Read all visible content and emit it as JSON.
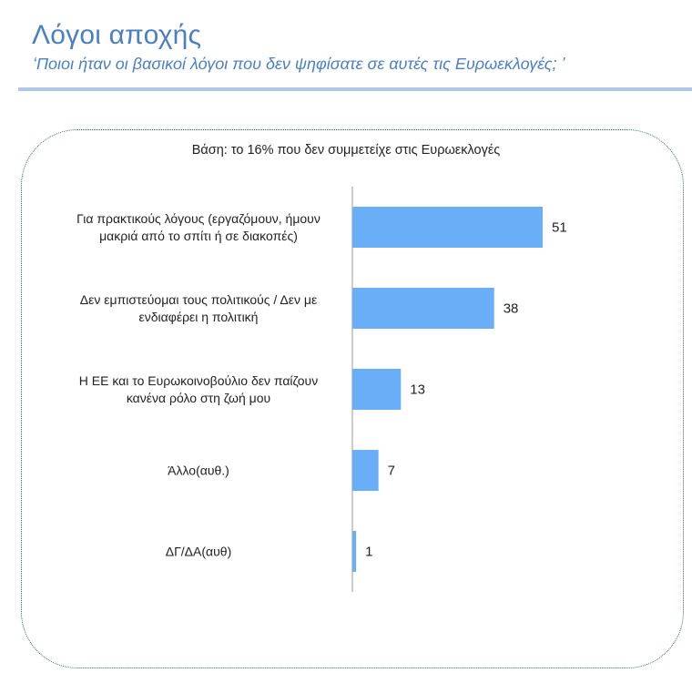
{
  "header": {
    "title": "Λόγοι αποχής",
    "subtitle": "‘Ποιοι ήταν οι βασικοί λόγοι που δεν ψηφίσατε σε αυτές τις Ευρωεκλογές; ’"
  },
  "base_note": "Βάση: το 16% που δεν συμμετείχε στις Ευρωεκλογές",
  "colors": {
    "bar": "#6aaef8",
    "title": "#4a7fc1",
    "axis": "#9a9a9a"
  },
  "chart_data": {
    "type": "bar",
    "orientation": "horizontal",
    "categories": [
      [
        "Για πρακτικούς λόγους (εργαζόμουν, ήμουν",
        "μακριά από το σπίτι ή σε διακοπές)"
      ],
      [
        "Δεν εμπιστεύομαι τους πολιτικούς / Δεν με",
        "ενδιαφέρει η πολιτική"
      ],
      [
        "Η ΕΕ και το Ευρωκοινοβούλιο δεν παίζουν",
        "κανένα ρόλο στη ζωή μου"
      ],
      [
        "Άλλο(αυθ.)"
      ],
      [
        "ΔΓ/ΔΑ(αυθ)"
      ]
    ],
    "values": [
      51,
      38,
      13,
      7,
      1
    ],
    "xlim": [
      0,
      100
    ],
    "grid": false,
    "legend": "none"
  }
}
